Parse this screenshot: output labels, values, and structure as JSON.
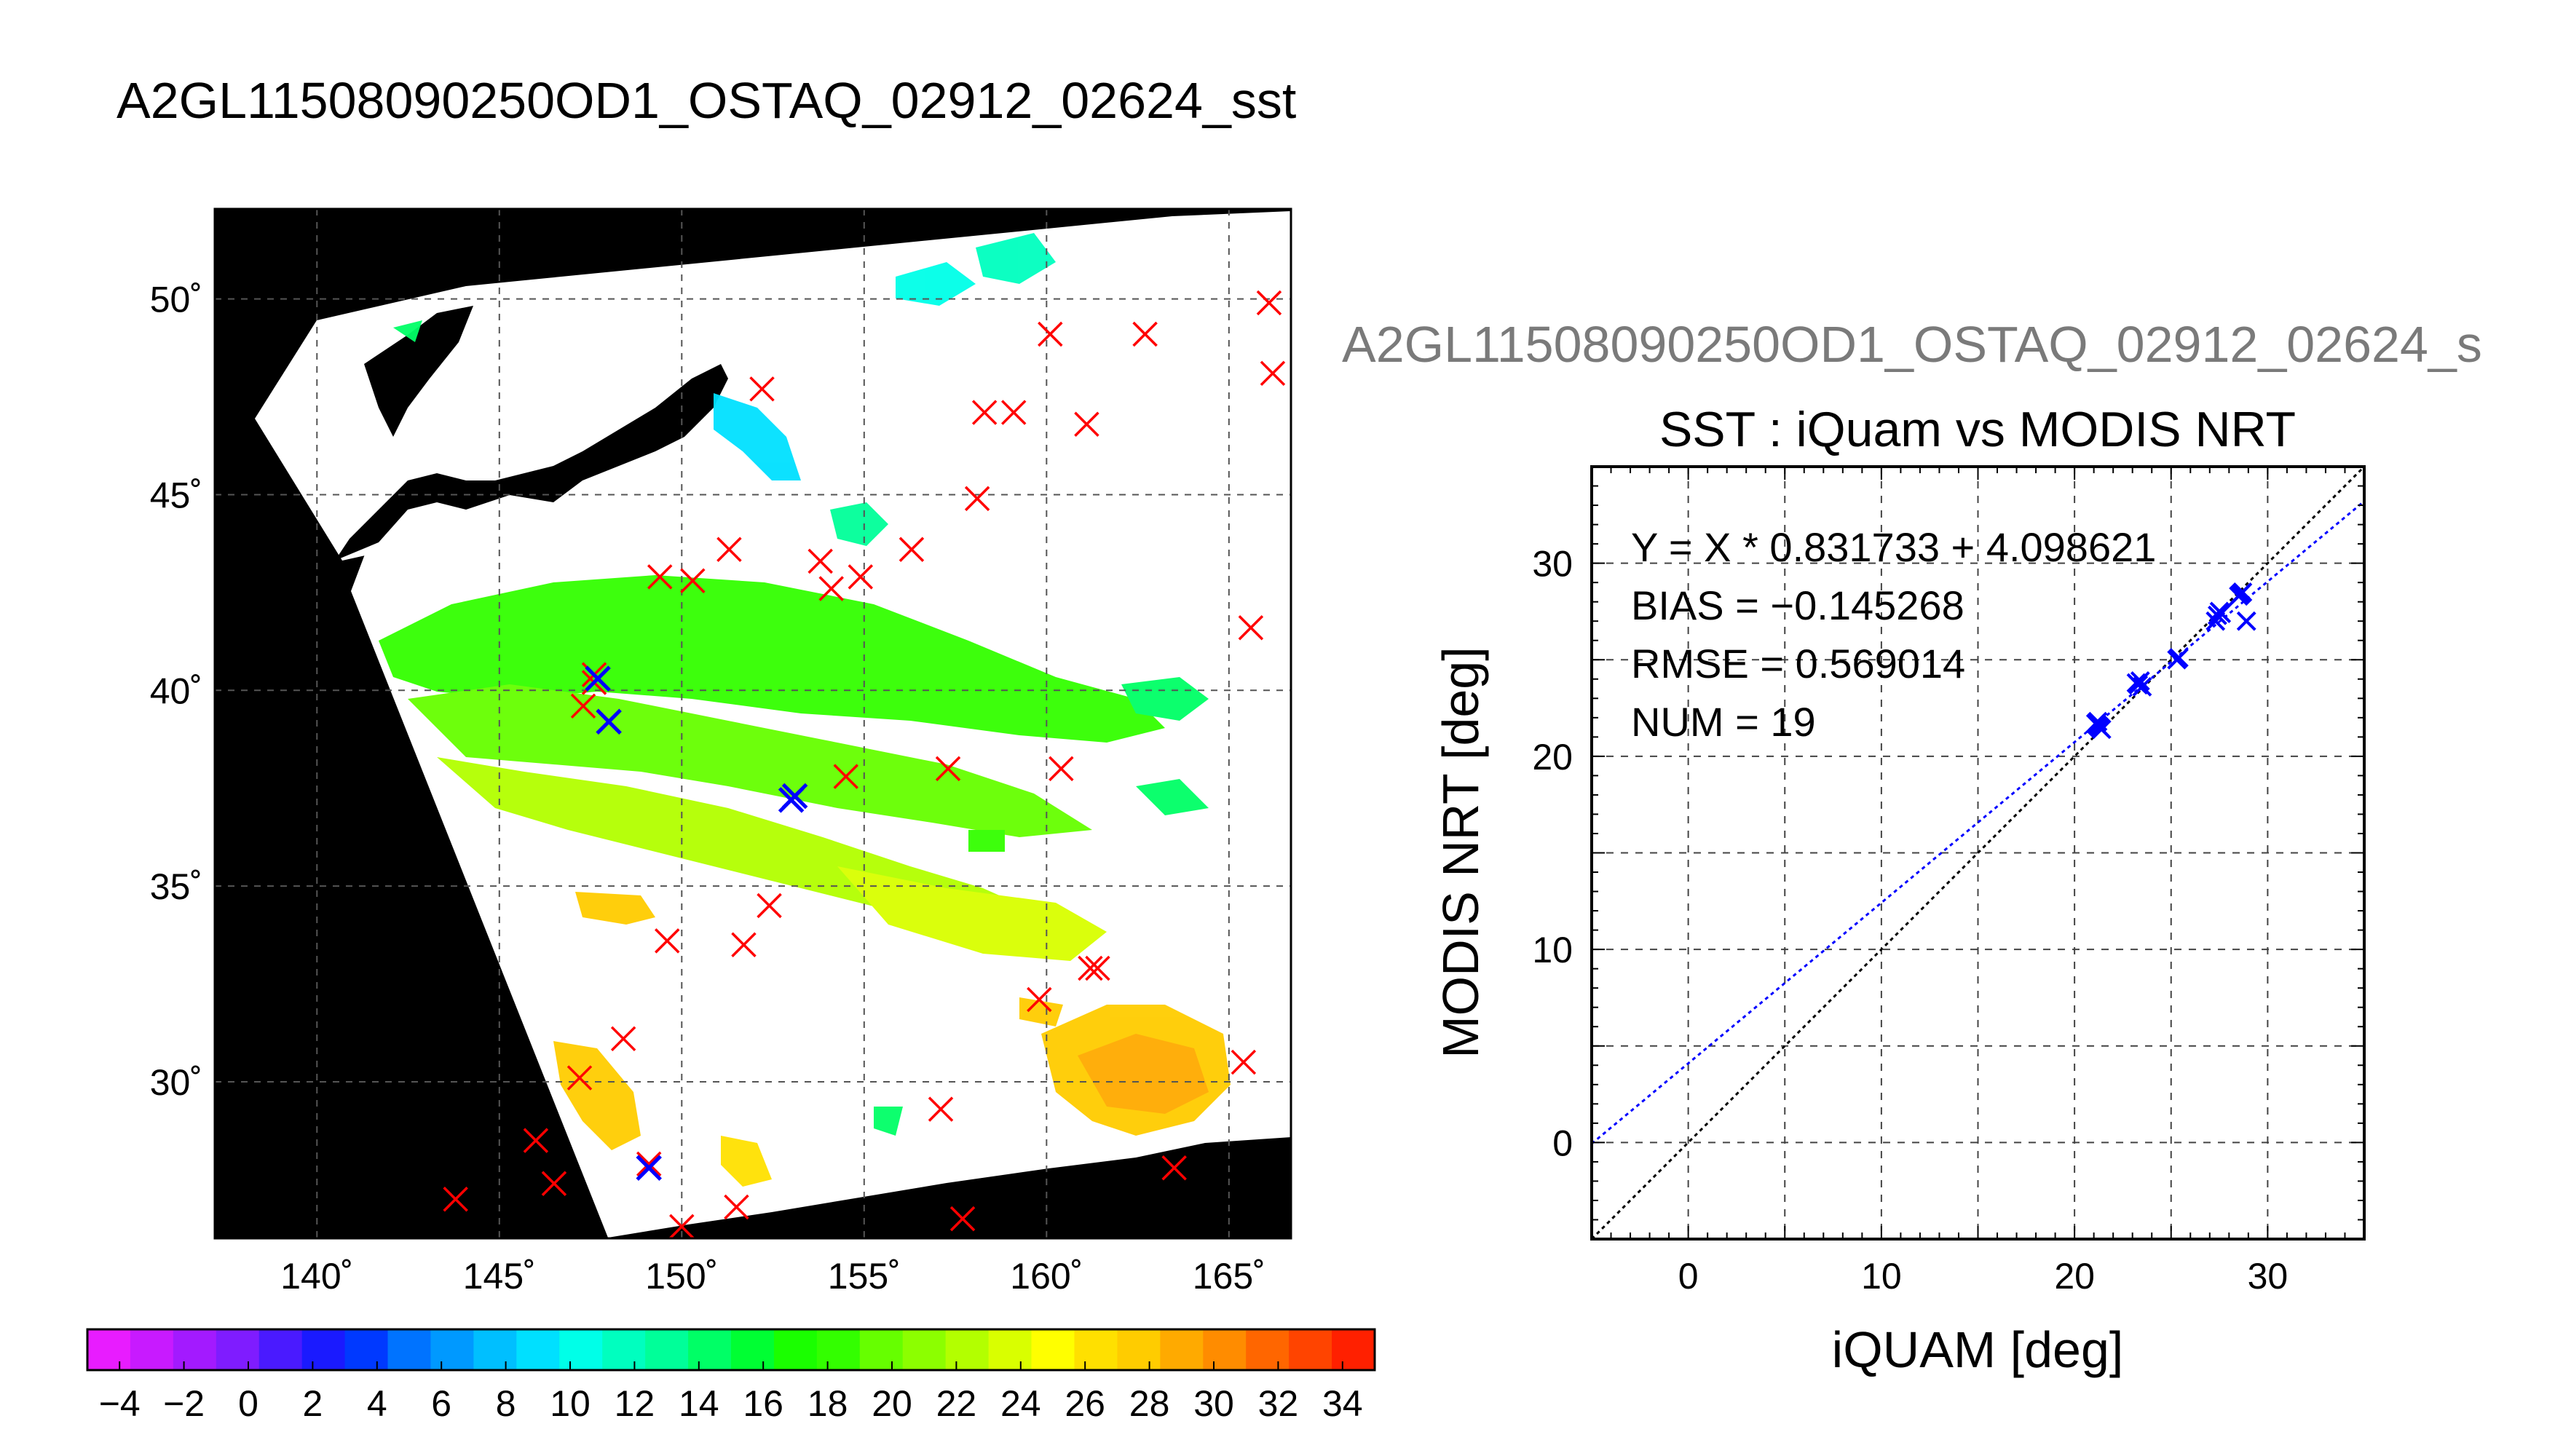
{
  "main_title": "A2GL11508090250OD1_OSTAQ_02912_02624_sst",
  "overlay_title": "A2GL11508090250OD1_OSTAQ_02912_02624_s",
  "colors": {
    "match_marker": "#ff0000",
    "filtered_marker": "#0000ff",
    "land": "#000000",
    "regression_line": "#0000ff",
    "identity_line": "#000000"
  },
  "map": {
    "lon_ticks": [
      140,
      145,
      150,
      155,
      160,
      165
    ],
    "lat_ticks": [
      30,
      35,
      40,
      45,
      50
    ],
    "degree_symbol": "˚",
    "lon_range": [
      137.2,
      166.7
    ],
    "lat_range": [
      26.0,
      52.3
    ]
  },
  "colorbar": {
    "range": [
      -5,
      35
    ],
    "tick_labels": [
      "−4",
      "−2",
      "0",
      "2",
      "4",
      "6",
      "8",
      "10",
      "12",
      "14",
      "16",
      "18",
      "20",
      "22",
      "24",
      "26",
      "28",
      "30",
      "32",
      "34"
    ],
    "colors": [
      "#e81cff",
      "#c81aff",
      "#a31aff",
      "#7f1cff",
      "#4a1aff",
      "#1a1aff",
      "#0039ff",
      "#0073ff",
      "#0099ff",
      "#00bfff",
      "#00e0ff",
      "#00ffe8",
      "#00ffbf",
      "#00ff99",
      "#00ff66",
      "#00ff33",
      "#1aff00",
      "#33ff00",
      "#66ff00",
      "#8cff00",
      "#b3ff00",
      "#d9ff00",
      "#ffff00",
      "#ffe000",
      "#ffcc00",
      "#ffaa00",
      "#ff8c00",
      "#ff6600",
      "#ff4400",
      "#ff2000"
    ]
  },
  "chart_data": [
    {
      "type": "scatter",
      "title": "A2GL11508090250OD1_OSTAQ_02912_02624_sst",
      "description_kind": "map of sea surface temperature with matchup locations",
      "xlim": [
        137.2,
        166.7
      ],
      "ylim": [
        26.0,
        52.3
      ],
      "series": [
        {
          "marker": "x",
          "color": "#ff0000",
          "points": [
            {
              "x": 143.8,
              "y": 27.0
            },
            {
              "x": 146.0,
              "y": 28.5
            },
            {
              "x": 146.5,
              "y": 27.4
            },
            {
              "x": 147.2,
              "y": 30.1
            },
            {
              "x": 148.4,
              "y": 31.1
            },
            {
              "x": 149.6,
              "y": 33.6
            },
            {
              "x": 150.0,
              "y": 26.3
            },
            {
              "x": 151.5,
              "y": 26.8
            },
            {
              "x": 151.7,
              "y": 33.5
            },
            {
              "x": 152.4,
              "y": 34.5
            },
            {
              "x": 157.1,
              "y": 29.3
            },
            {
              "x": 157.7,
              "y": 26.5
            },
            {
              "x": 159.8,
              "y": 32.1
            },
            {
              "x": 161.2,
              "y": 32.9
            },
            {
              "x": 163.5,
              "y": 27.8
            },
            {
              "x": 165.4,
              "y": 30.5
            },
            {
              "x": 147.3,
              "y": 39.6
            },
            {
              "x": 147.6,
              "y": 40.2
            },
            {
              "x": 157.3,
              "y": 38.0
            },
            {
              "x": 160.4,
              "y": 38.0
            },
            {
              "x": 149.4,
              "y": 42.9
            },
            {
              "x": 150.3,
              "y": 42.8
            },
            {
              "x": 151.3,
              "y": 43.6
            },
            {
              "x": 153.8,
              "y": 43.3
            },
            {
              "x": 154.1,
              "y": 42.6
            },
            {
              "x": 154.9,
              "y": 42.9
            },
            {
              "x": 156.3,
              "y": 43.6
            },
            {
              "x": 158.1,
              "y": 44.9
            },
            {
              "x": 152.2,
              "y": 47.7
            },
            {
              "x": 158.3,
              "y": 47.1
            },
            {
              "x": 159.1,
              "y": 47.1
            },
            {
              "x": 160.1,
              "y": 49.1
            },
            {
              "x": 161.1,
              "y": 46.8
            },
            {
              "x": 162.7,
              "y": 49.1
            },
            {
              "x": 166.1,
              "y": 49.9
            },
            {
              "x": 166.2,
              "y": 48.1
            },
            {
              "x": 165.6,
              "y": 41.6
            },
            {
              "x": 147.6,
              "y": 40.4
            },
            {
              "x": 153.1,
              "y": 37.3
            },
            {
              "x": 149.1,
              "y": 27.9
            },
            {
              "x": 154.5,
              "y": 37.8
            },
            {
              "x": 161.4,
              "y": 32.9
            }
          ]
        },
        {
          "marker": "x",
          "color": "#0000ff",
          "points": [
            {
              "x": 147.7,
              "y": 40.3
            },
            {
              "x": 148.0,
              "y": 39.2
            },
            {
              "x": 153.1,
              "y": 37.3
            },
            {
              "x": 153.0,
              "y": 37.2
            },
            {
              "x": 149.1,
              "y": 27.8
            }
          ]
        }
      ]
    },
    {
      "type": "scatter",
      "title": "SST : iQuam vs MODIS NRT",
      "xlabel": "iQUAM [deg]",
      "ylabel": "MODIS NRT [deg]",
      "xlim": [
        -5,
        35
      ],
      "ylim": [
        -5,
        35
      ],
      "x_ticks": [
        0,
        10,
        20,
        30
      ],
      "y_ticks": [
        0,
        10,
        20,
        30
      ],
      "grid": true,
      "stats": {
        "equation": "Y = X * 0.831733 + 4.098621",
        "bias": "BIAS = −0.145268",
        "rmse": "RMSE = 0.569014",
        "num": "NUM = 19"
      },
      "regression": {
        "slope": 0.831733,
        "intercept": 4.098621,
        "color": "#0000ff"
      },
      "identity_line": {
        "slope": 1,
        "intercept": 0,
        "color": "#000000"
      },
      "series": [
        {
          "marker": "x",
          "color": "#0000ff",
          "points": [
            {
              "x": 21.1,
              "y": 21.7
            },
            {
              "x": 21.3,
              "y": 21.5
            },
            {
              "x": 21.2,
              "y": 21.6
            },
            {
              "x": 21.4,
              "y": 21.4
            },
            {
              "x": 23.3,
              "y": 23.7
            },
            {
              "x": 23.4,
              "y": 23.9
            },
            {
              "x": 23.2,
              "y": 23.8
            },
            {
              "x": 25.3,
              "y": 25.0
            },
            {
              "x": 25.4,
              "y": 25.1
            },
            {
              "x": 27.4,
              "y": 27.3
            },
            {
              "x": 27.5,
              "y": 27.5
            },
            {
              "x": 27.3,
              "y": 27.0
            },
            {
              "x": 27.6,
              "y": 27.4
            },
            {
              "x": 28.6,
              "y": 28.4
            },
            {
              "x": 28.5,
              "y": 28.3
            },
            {
              "x": 28.9,
              "y": 27.0
            },
            {
              "x": 21.2,
              "y": 21.8
            },
            {
              "x": 23.5,
              "y": 23.6
            },
            {
              "x": 28.7,
              "y": 28.5
            }
          ]
        }
      ]
    }
  ]
}
